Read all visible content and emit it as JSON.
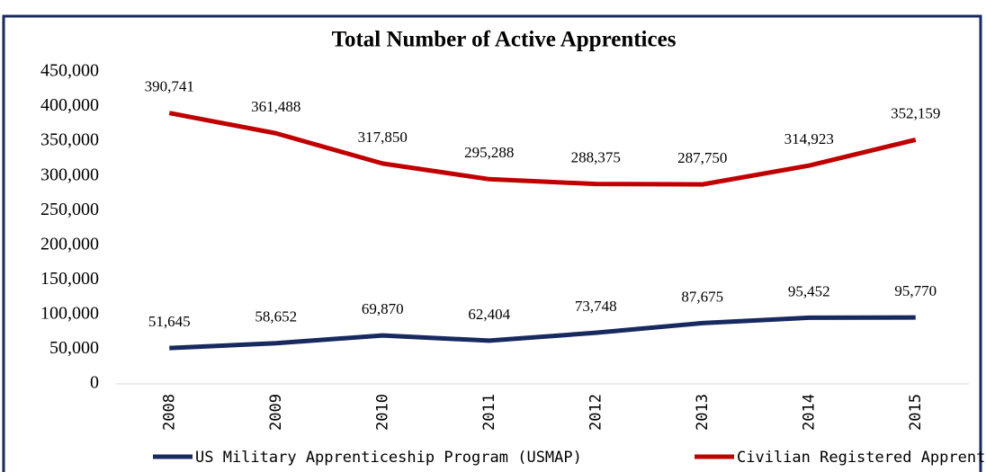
{
  "chart_data": {
    "type": "line",
    "title": "Total Number of Active Apprentices",
    "categories": [
      "2008",
      "2009",
      "2010",
      "2011",
      "2012",
      "2013",
      "2014",
      "2015"
    ],
    "series": [
      {
        "name": "US Military Apprenticeship Program (USMAP)",
        "color": "#17295e",
        "values": [
          51645,
          58652,
          69870,
          62404,
          73748,
          87675,
          95452,
          95770
        ],
        "value_labels": [
          "51,645",
          "58,652",
          "69,870",
          "62,404",
          "73,748",
          "87,675",
          "95,452",
          "95,770"
        ]
      },
      {
        "name": "Civilian Registered Apprenticeships",
        "color": "#c00000",
        "values": [
          390741,
          361488,
          317850,
          295288,
          288375,
          287750,
          314923,
          352159
        ],
        "value_labels": [
          "390,741",
          "361,488",
          "317,850",
          "295,288",
          "288,375",
          "287,750",
          "314,923",
          "352,159"
        ]
      }
    ],
    "ylim": [
      0,
      450000
    ],
    "yticks": [
      0,
      {
        "value": 50000,
        "label": "50,000"
      },
      {
        "value": 100000,
        "label": "100,000"
      },
      {
        "value": 150000,
        "label": "150,000"
      },
      {
        "value": 200000,
        "label": "200,000"
      },
      {
        "value": 250000,
        "label": "250,000"
      },
      {
        "value": 300000,
        "label": "300,000"
      },
      {
        "value": 350000,
        "label": "350,000"
      },
      {
        "value": 400000,
        "label": "400,000"
      },
      {
        "value": 450000,
        "label": "450,000"
      }
    ],
    "legend": "bottom"
  }
}
